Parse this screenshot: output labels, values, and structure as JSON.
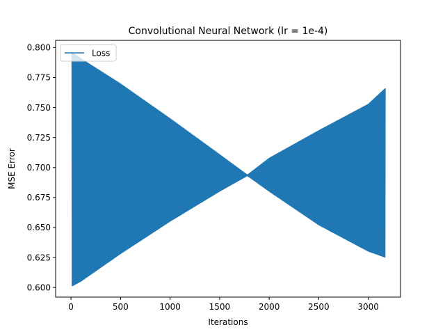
{
  "chart_data": {
    "type": "line",
    "title": "Convolutional Neural Network (lr = 1e-4)",
    "xlabel": "Iterations",
    "ylabel": "MSE Error",
    "xlim": [
      -155,
      3325
    ],
    "ylim": [
      0.592,
      0.806
    ],
    "xticks": [
      0,
      500,
      1000,
      1500,
      2000,
      2500,
      3000
    ],
    "xtick_labels": [
      "0",
      "500",
      "1000",
      "1500",
      "2000",
      "2500",
      "3000"
    ],
    "yticks": [
      0.6,
      0.625,
      0.65,
      0.675,
      0.7,
      0.725,
      0.75,
      0.775,
      0.8
    ],
    "ytick_labels": [
      "0.600",
      "0.625",
      "0.650",
      "0.675",
      "0.700",
      "0.725",
      "0.750",
      "0.775",
      "0.800"
    ],
    "grid": false,
    "legend_position": "upper-left",
    "series": [
      {
        "name": "Loss",
        "color": "#1f77b4",
        "pattern": "rapid oscillation between an upper and a lower envelope",
        "upper_envelope": {
          "x": [
            10,
            100,
            500,
            1000,
            1500,
            1780,
            2000,
            2500,
            3000,
            3170
          ],
          "y": [
            0.796,
            0.791,
            0.77,
            0.741,
            0.711,
            0.694,
            0.708,
            0.731,
            0.753,
            0.766
          ]
        },
        "lower_envelope": {
          "x": [
            10,
            100,
            500,
            1000,
            1500,
            1780,
            2000,
            2500,
            3000,
            3170
          ],
          "y": [
            0.601,
            0.605,
            0.628,
            0.655,
            0.68,
            0.693,
            0.68,
            0.652,
            0.63,
            0.625
          ]
        },
        "x_range": [
          10,
          3170
        ]
      }
    ]
  }
}
